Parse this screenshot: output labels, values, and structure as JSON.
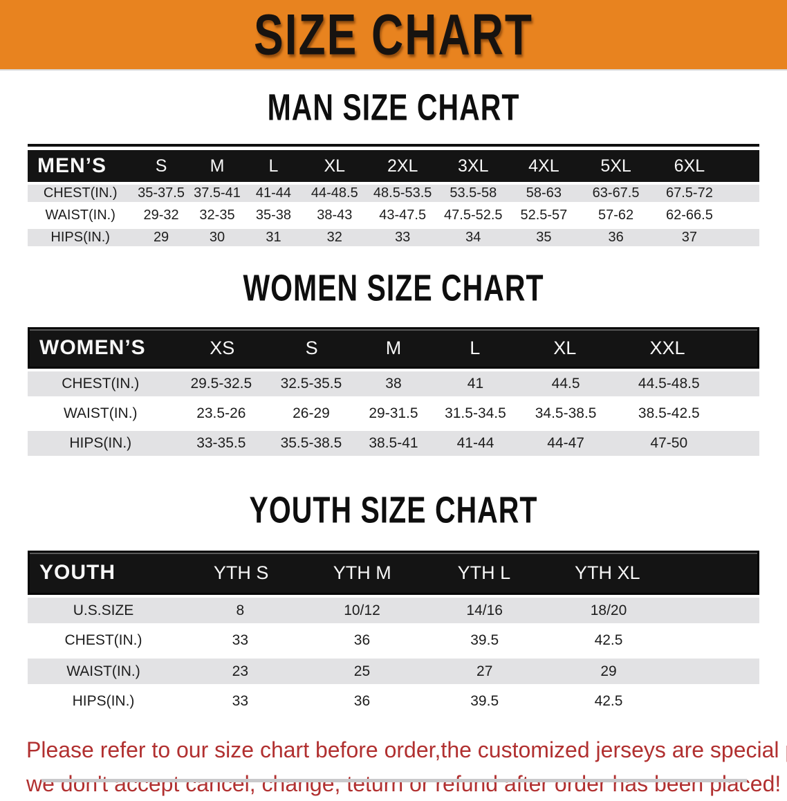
{
  "banner": {
    "title": "SIZE CHART"
  },
  "colors": {
    "banner_bg": "#E8831F",
    "table_header_bg": "#141414",
    "stripe_row_bg": "#E2E2E4",
    "disclaimer_text": "#B13030"
  },
  "sections": [
    {
      "title": "MAN SIZE CHART",
      "corner_label": "MEN’S",
      "sizes": [
        "S",
        "M",
        "L",
        "XL",
        "2XL",
        "3XL",
        "4XL",
        "5XL",
        "6XL"
      ],
      "rows": [
        {
          "label": "CHEST(IN.)",
          "values": [
            "35-37.5",
            "37.5-41",
            "41-44",
            "44-48.5",
            "48.5-53.5",
            "53.5-58",
            "58-63",
            "63-67.5",
            "67.5-72"
          ]
        },
        {
          "label": "WAIST(IN.)",
          "values": [
            "29-32",
            "32-35",
            "35-38",
            "38-43",
            "43-47.5",
            "47.5-52.5",
            "52.5-57",
            "57-62",
            "62-66.5"
          ]
        },
        {
          "label": "HIPS(IN.)",
          "values": [
            "29",
            "30",
            "31",
            "32",
            "33",
            "34",
            "35",
            "36",
            "37"
          ]
        }
      ]
    },
    {
      "title": "WOMEN SIZE CHART",
      "corner_label": "WOMEN’S",
      "sizes": [
        "XS",
        "S",
        "M",
        "L",
        "XL",
        "XXL"
      ],
      "rows": [
        {
          "label": "CHEST(IN.)",
          "values": [
            "29.5-32.5",
            "32.5-35.5",
            "38",
            "41",
            "44.5",
            "44.5-48.5"
          ]
        },
        {
          "label": "WAIST(IN.)",
          "values": [
            "23.5-26",
            "26-29",
            "29-31.5",
            "31.5-34.5",
            "34.5-38.5",
            "38.5-42.5"
          ]
        },
        {
          "label": "HIPS(IN.)",
          "values": [
            "33-35.5",
            "35.5-38.5",
            "38.5-41",
            "41-44",
            "44-47",
            "47-50"
          ]
        }
      ]
    },
    {
      "title": "YOUTH SIZE CHART",
      "corner_label": "YOUTH",
      "sizes": [
        "YTH S",
        "YTH M",
        "YTH L",
        "YTH XL"
      ],
      "rows": [
        {
          "label": "U.S.SIZE",
          "values": [
            "8",
            "10/12",
            "14/16",
            "18/20"
          ]
        },
        {
          "label": "CHEST(IN.)",
          "values": [
            "33",
            "36",
            "39.5",
            "42.5"
          ]
        },
        {
          "label": "WAIST(IN.)",
          "values": [
            "23",
            "25",
            "27",
            "29"
          ]
        },
        {
          "label": "HIPS(IN.)",
          "values": [
            "33",
            "36",
            "39.5",
            "42.5"
          ]
        }
      ]
    }
  ],
  "disclaimer": {
    "line1": "Please refer to our size chart before order,the customized jerseys are special products,",
    "line2": "we don't accept cancel, change, teturn or refund after order has been placed!"
  }
}
